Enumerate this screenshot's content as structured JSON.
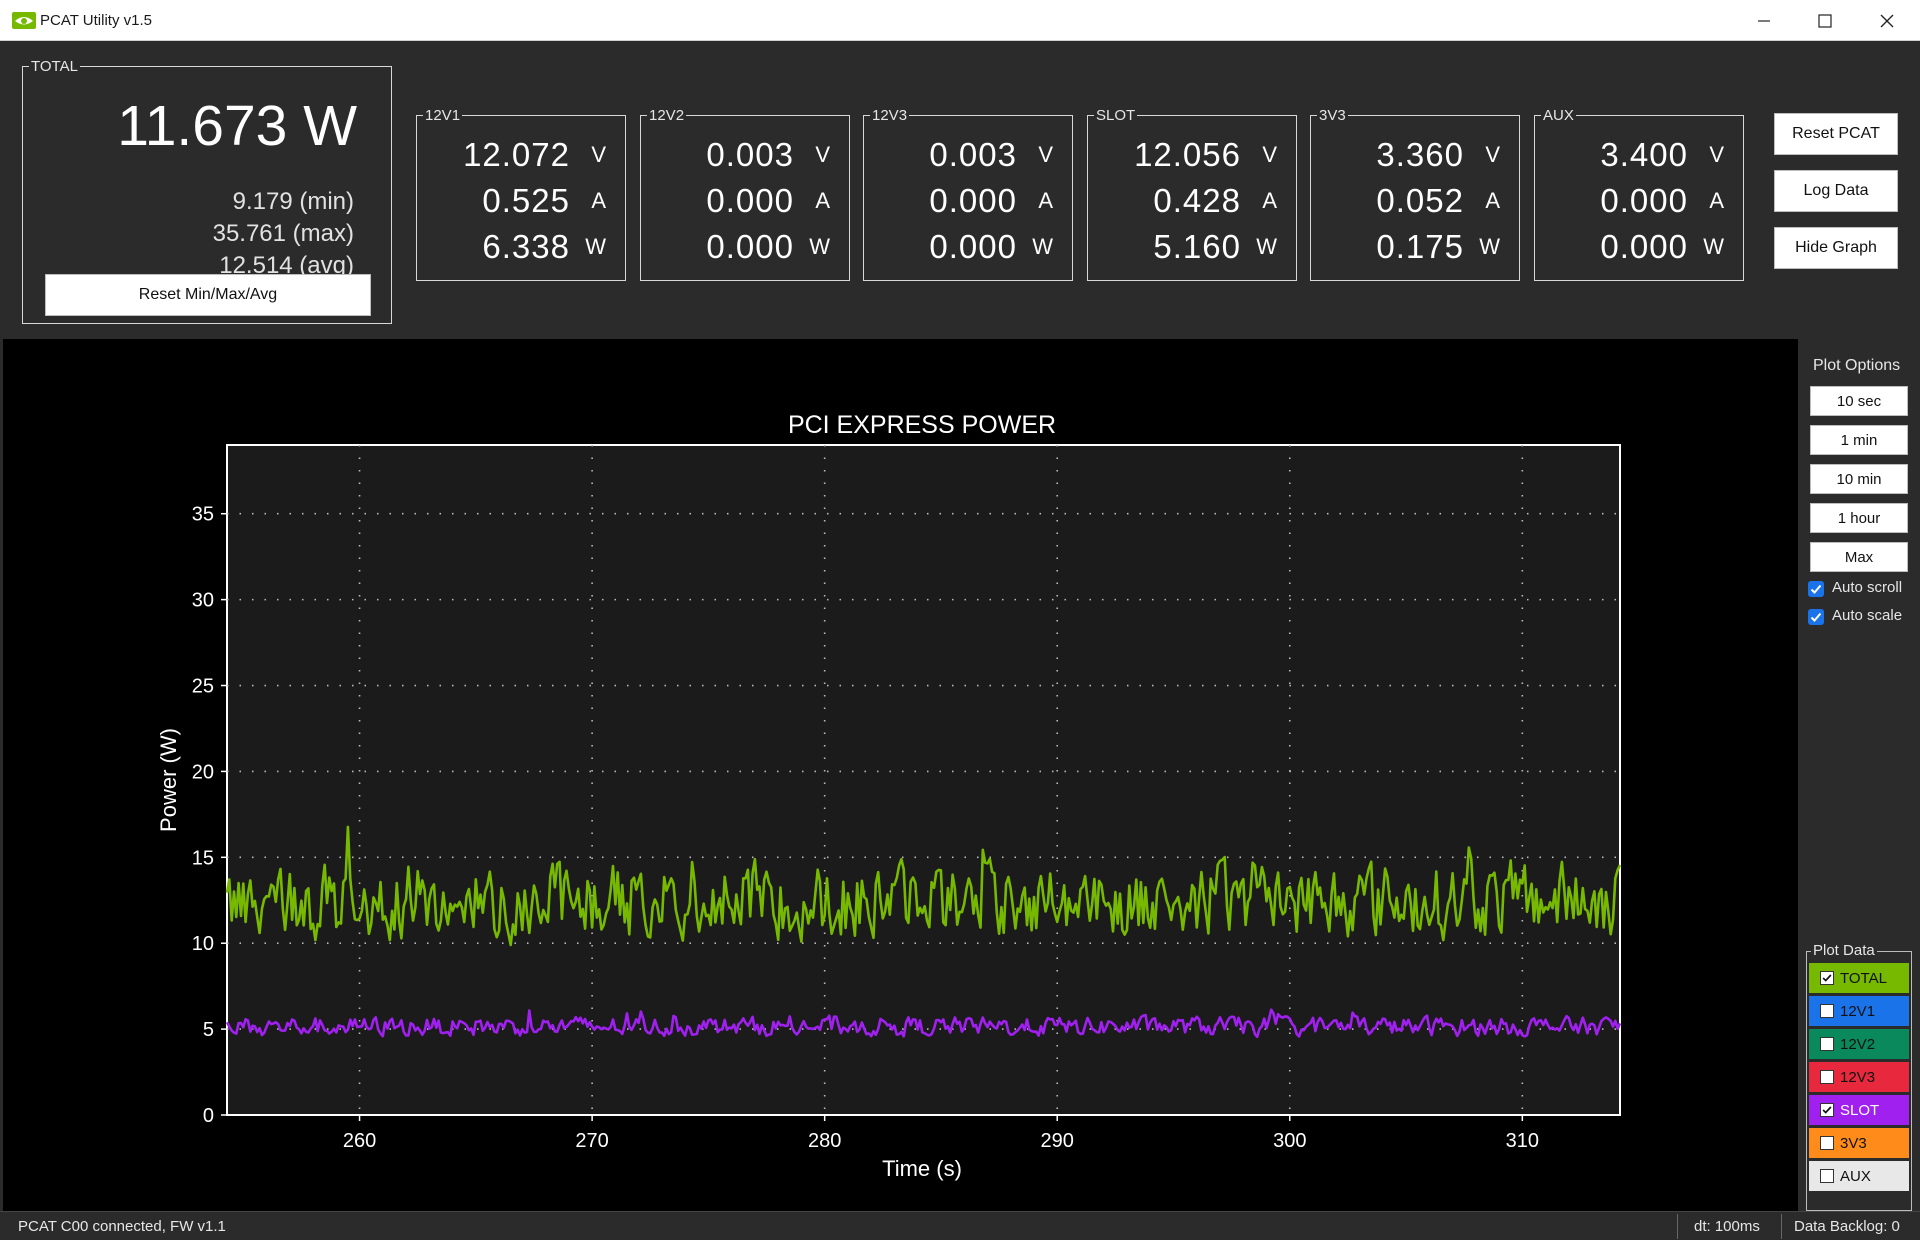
{
  "window": {
    "title": "PCAT Utility v1.5",
    "buttons": [
      "minimize",
      "maximize",
      "close"
    ]
  },
  "total": {
    "group_label": "TOTAL",
    "value": "11.673 W",
    "min": "9.179 (min)",
    "max": "35.761 (max)",
    "avg": "12.514 (avg)",
    "reset_label": "Reset Min/Max/Avg"
  },
  "rails": [
    {
      "label": "12V1",
      "volts": "12.072",
      "amps": "0.525",
      "watts": "6.338"
    },
    {
      "label": "12V2",
      "volts": "0.003",
      "amps": "0.000",
      "watts": "0.000"
    },
    {
      "label": "12V3",
      "volts": "0.003",
      "amps": "0.000",
      "watts": "0.000"
    },
    {
      "label": "SLOT",
      "volts": "12.056",
      "amps": "0.428",
      "watts": "5.160"
    },
    {
      "label": "3V3",
      "volts": "3.360",
      "amps": "0.052",
      "watts": "0.175"
    },
    {
      "label": "AUX",
      "volts": "3.400",
      "amps": "0.000",
      "watts": "0.000"
    }
  ],
  "units": {
    "v": "V",
    "a": "A",
    "w": "W"
  },
  "actions": {
    "reset_pcat": "Reset PCAT",
    "log_data": "Log Data",
    "hide_graph": "Hide Graph"
  },
  "plot_options": {
    "title": "Plot Options",
    "buttons": [
      "10 sec",
      "1 min",
      "10 min",
      "1 hour",
      "Max"
    ],
    "auto_scroll": {
      "label": "Auto scroll",
      "checked": true
    },
    "auto_scale": {
      "label": "Auto scale",
      "checked": true
    }
  },
  "plot_data": {
    "title": "Plot Data",
    "items": [
      {
        "label": "TOTAL",
        "color": "#76b900",
        "checked": true,
        "text_color": "#111111"
      },
      {
        "label": "12V1",
        "color": "#1a73e8",
        "checked": false,
        "text_color": "#111111"
      },
      {
        "label": "12V2",
        "color": "#0a8a5c",
        "checked": false,
        "text_color": "#111111"
      },
      {
        "label": "12V3",
        "color": "#e8283c",
        "checked": false,
        "text_color": "#111111"
      },
      {
        "label": "SLOT",
        "color": "#a020f0",
        "checked": true,
        "text_color": "#ffffff"
      },
      {
        "label": "3V3",
        "color": "#ff8c1a",
        "checked": false,
        "text_color": "#111111"
      },
      {
        "label": "AUX",
        "color": "#e8e8e8",
        "checked": false,
        "text_color": "#111111"
      }
    ]
  },
  "status": {
    "connection": "PCAT C00 connected, FW v1.1",
    "dt": "dt: 100ms",
    "backlog": "Data Backlog: 0"
  },
  "chart_data": {
    "type": "line",
    "title": "PCI EXPRESS POWER",
    "xlabel": "Time (s)",
    "ylabel": "Power (W)",
    "xlim": [
      254.3,
      314.2
    ],
    "ylim": [
      0,
      39
    ],
    "xticks": [
      260,
      270,
      280,
      290,
      300,
      310
    ],
    "yticks": [
      0,
      5,
      10,
      15,
      20,
      25,
      30,
      35
    ],
    "grid": true,
    "series": [
      {
        "name": "TOTAL",
        "color": "#76b900",
        "mean": 12.5,
        "range": [
          9.6,
          17.2
        ],
        "x_start": 254.3,
        "x_end": 314.2,
        "x_step": 0.1
      },
      {
        "name": "SLOT",
        "color": "#a020f0",
        "mean": 5.16,
        "range": [
          4.3,
          6.2
        ],
        "x_start": 254.3,
        "x_end": 314.2,
        "x_step": 0.1
      }
    ]
  }
}
